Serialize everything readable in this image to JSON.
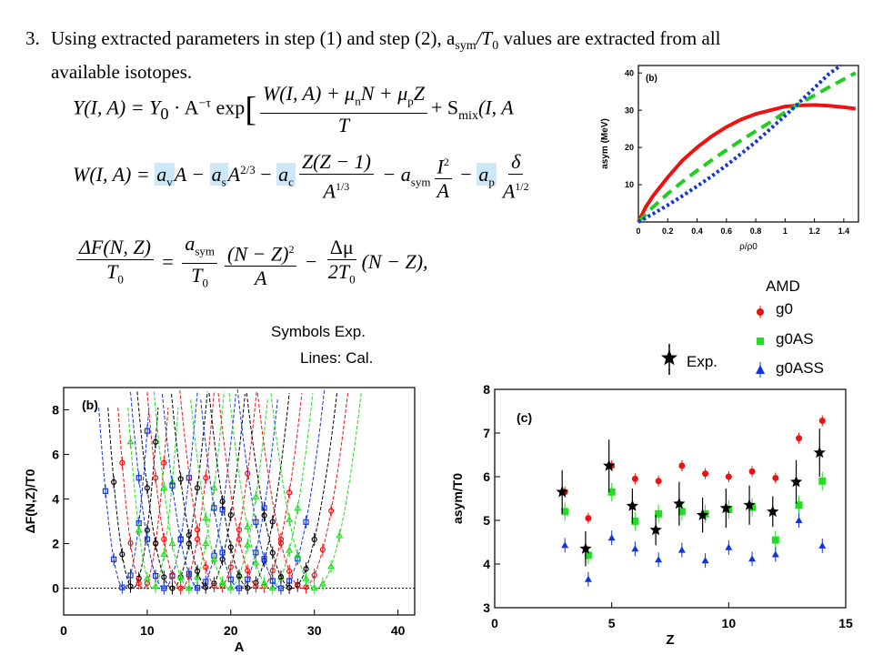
{
  "step": {
    "number": "3.",
    "text_line1": "Using extracted parameters in step (1) and step (2), a",
    "text_sym": "sym",
    "text_mid": "/T",
    "text_zero": "0",
    "text_line1_end": " values are extracted from all",
    "text_line2": "available isotopes."
  },
  "equations": {
    "eq1_lhs": "Y(I, A) = Y",
    "eq1_rest": "· A",
    "eq1_tau": "−τ",
    "eq1_exp": " exp",
    "eq1_num": "W(I, A) + μ",
    "eq1_num2": "N + μ",
    "eq1_num3": "Z",
    "eq1_den": "T",
    "eq1_tail": "+ S",
    "eq1_mix": "mix",
    "eq1_end": "(I, A",
    "eq2_lhs": "W(I, A) = ",
    "eq2_av": "a",
    "eq2_A": "A − ",
    "eq2_as": "a",
    "eq2_A23": "A",
    "eq2_minus_ac": " − ",
    "eq2_ac": "a",
    "eq2_zfrac_n": "Z(Z − 1)",
    "eq2_zfrac_d": "A",
    "eq2_asym": " − a",
    "eq2_I2n": "I",
    "eq2_I2d": "A",
    "eq2_ap": "a",
    "eq2_delta_n": "δ",
    "eq2_delta_d": "A",
    "eq3_lhs_n": "ΔF(N, Z)",
    "eq3_lhs_d": "T",
    "eq3_a_n": "a",
    "eq3_a_d": "T",
    "eq3_b_n": "(N − Z)",
    "eq3_b_d": "A",
    "eq3_c_n": "Δμ",
    "eq3_c_d": "2T",
    "eq3_end": "(N − Z),"
  },
  "labels": {
    "symbols_exp": "Symbols Exp.",
    "lines_cal": "Lines: Cal.",
    "amd": "AMD",
    "legend_g0": "g0",
    "legend_g0as": "g0AS",
    "legend_g0ass": "g0ASS",
    "legend_exp": "Exp."
  },
  "colors": {
    "red": "#ee1111",
    "green": "#22dd22",
    "blue": "#1133dd",
    "black": "#000000",
    "highlight": "#cde8f8"
  },
  "chart_data": [
    {
      "id": "asym-density",
      "type": "line",
      "panel_label": "(b)",
      "xlabel": "ρ/ρ0",
      "ylabel": "asym (MeV)",
      "xlim": [
        0,
        1.5
      ],
      "ylim": [
        0,
        42
      ],
      "xticks": [
        "0",
        "0.2",
        "0.4",
        "0.6",
        "0.8",
        "1",
        "1.2",
        "1.4"
      ],
      "yticks": [
        "10",
        "20",
        "30",
        "40"
      ],
      "series": [
        {
          "style": "solid-red",
          "x": [
            0,
            0.05,
            0.1,
            0.2,
            0.3,
            0.4,
            0.5,
            0.6,
            0.7,
            0.8,
            0.9,
            1.0,
            1.1,
            1.2,
            1.3,
            1.4,
            1.48
          ],
          "y": [
            0,
            4,
            7,
            12,
            16.5,
            20,
            23,
            25.5,
            27.5,
            29,
            30,
            31,
            31.3,
            31.4,
            31.2,
            30.8,
            30.4
          ]
        },
        {
          "style": "dashed-green",
          "x": [
            0,
            0.1,
            0.2,
            0.3,
            0.4,
            0.5,
            0.6,
            0.7,
            0.8,
            0.9,
            1.0,
            1.1,
            1.2,
            1.3,
            1.4,
            1.48
          ],
          "y": [
            0,
            4,
            7.6,
            10.8,
            13.8,
            16.6,
            19.3,
            21.9,
            24.4,
            26.8,
            29.5,
            31.8,
            34,
            36.2,
            38.3,
            40
          ]
        },
        {
          "style": "dotted-blue",
          "x": [
            0,
            0.1,
            0.2,
            0.3,
            0.4,
            0.5,
            0.6,
            0.7,
            0.8,
            0.9,
            1.0,
            1.1,
            1.2,
            1.3,
            1.38
          ],
          "y": [
            0,
            2.2,
            4.5,
            7,
            9.6,
            12.3,
            15.2,
            18.3,
            21.5,
            25,
            28.5,
            32.2,
            36,
            39.8,
            42
          ]
        }
      ]
    },
    {
      "id": "free-energy",
      "type": "scatter",
      "panel_label": "(b)",
      "xlabel": "A",
      "ylabel": "ΔF(N,Z)/T0",
      "xlim": [
        0,
        42
      ],
      "ylim": [
        -1.2,
        9
      ],
      "xticks": [
        "0",
        "10",
        "20",
        "30",
        "40"
      ],
      "yticks": [
        "0",
        "2",
        "4",
        "6",
        "8"
      ],
      "parabolas": [
        {
          "color": "blue",
          "x0": 7.2,
          "k": 0.9
        },
        {
          "color": "black",
          "x0": 8.3,
          "k": 0.9
        },
        {
          "color": "red",
          "x0": 9.5,
          "k": 0.9
        },
        {
          "color": "green",
          "x0": 10.7,
          "k": 0.9
        },
        {
          "color": "blue",
          "x0": 12.0,
          "k": 0.55
        },
        {
          "color": "black",
          "x0": 13.0,
          "k": 0.5
        },
        {
          "color": "red",
          "x0": 14.0,
          "k": 0.55
        },
        {
          "color": "green",
          "x0": 15.0,
          "k": 0.5
        },
        {
          "color": "blue",
          "x0": 16.2,
          "k": 0.45
        },
        {
          "color": "black",
          "x0": 17.3,
          "k": 0.45
        },
        {
          "color": "red",
          "x0": 18.5,
          "k": 0.42
        },
        {
          "color": "green",
          "x0": 19.8,
          "k": 0.4
        },
        {
          "color": "blue",
          "x0": 21.0,
          "k": 0.4
        },
        {
          "color": "black",
          "x0": 22.2,
          "k": 0.38
        },
        {
          "color": "red",
          "x0": 23.5,
          "k": 0.35
        },
        {
          "color": "green",
          "x0": 24.8,
          "k": 0.35
        },
        {
          "color": "blue",
          "x0": 26.0,
          "k": 0.33
        },
        {
          "color": "black",
          "x0": 27.3,
          "k": 0.3
        },
        {
          "color": "red",
          "x0": 28.6,
          "k": 0.3
        },
        {
          "color": "green",
          "x0": 30.2,
          "k": 0.3
        }
      ]
    },
    {
      "id": "asym-vs-z",
      "type": "scatter",
      "panel_label": "(c)",
      "xlabel": "Z",
      "ylabel": "asym/T0",
      "xlim": [
        0,
        15
      ],
      "ylim": [
        3,
        8
      ],
      "xticks": [
        "0",
        "5",
        "10",
        "15"
      ],
      "yticks": [
        "3",
        "4",
        "5",
        "6",
        "7",
        "8"
      ],
      "series": [
        {
          "name": "g0",
          "color": "red",
          "marker": "circle",
          "x": [
            3,
            4,
            5,
            6,
            7,
            8,
            9,
            10,
            11,
            12,
            13,
            14
          ],
          "y": [
            5.65,
            5.05,
            6.25,
            5.95,
            5.9,
            6.25,
            6.07,
            6.0,
            6.12,
            5.97,
            6.88,
            7.28
          ]
        },
        {
          "name": "g0AS",
          "color": "green",
          "marker": "square",
          "x": [
            3,
            4,
            5,
            6,
            7,
            8,
            9,
            10,
            11,
            12,
            13,
            14
          ],
          "y": [
            5.2,
            4.2,
            5.65,
            4.98,
            5.15,
            5.2,
            5.15,
            5.25,
            5.3,
            4.55,
            5.35,
            5.9
          ]
        },
        {
          "name": "g0ASS",
          "color": "blue",
          "marker": "triangle",
          "x": [
            3,
            4,
            5,
            6,
            7,
            8,
            9,
            10,
            11,
            12,
            13,
            14
          ],
          "y": [
            4.43,
            3.65,
            4.6,
            4.35,
            4.1,
            4.32,
            4.08,
            4.38,
            4.12,
            4.22,
            5.0,
            4.42
          ]
        },
        {
          "name": "Exp.",
          "color": "black",
          "marker": "star",
          "x": [
            3,
            4,
            5,
            6,
            7,
            8,
            9,
            10,
            11,
            12,
            13,
            14
          ],
          "y": [
            5.65,
            4.35,
            6.25,
            5.33,
            4.78,
            5.38,
            5.12,
            5.28,
            5.35,
            5.2,
            5.88,
            6.55
          ],
          "err": [
            0.5,
            0.4,
            0.6,
            0.4,
            0.35,
            0.5,
            0.4,
            0.45,
            0.45,
            0.35,
            0.5,
            0.55
          ]
        }
      ]
    }
  ]
}
